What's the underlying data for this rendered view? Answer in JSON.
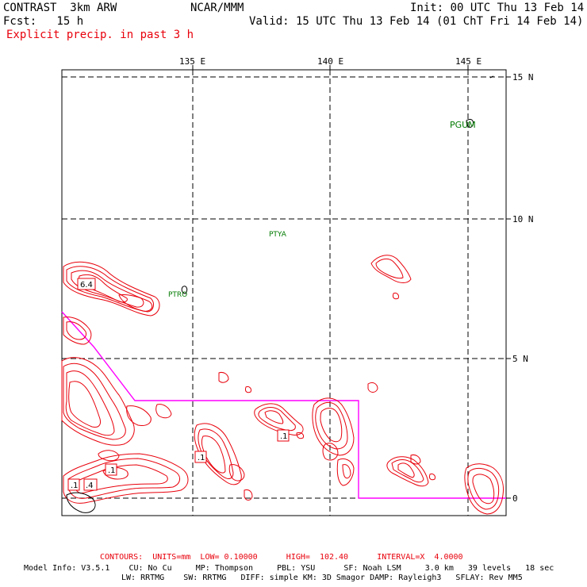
{
  "header": {
    "model": "CONTRAST  3km ARW",
    "org": "NCAR/MMM",
    "init": "Init: 00 UTC Thu 13 Feb 14",
    "fcst": "Fcst:   15 h",
    "valid": "Valid: 15 UTC Thu 13 Feb 14 (01 ChT Fri 14 Feb 14)",
    "field": "Explicit precip. in past 3 h"
  },
  "map": {
    "lon_labels": [
      "135 E",
      "140 E",
      "145 E"
    ],
    "lat_labels": [
      "15 N",
      "10 N",
      "5 N",
      "0"
    ],
    "stations": [
      "PGUM",
      "PTYA",
      "PTRO"
    ],
    "contour_labels": [
      "6.4",
      ".1",
      ".1",
      ".1",
      ".1",
      ".4"
    ],
    "colors": {
      "contour": "#e8000b",
      "boundary": "#ff00ff",
      "station": "#007a00",
      "grid": "#000000"
    }
  },
  "footer": {
    "contours": "CONTOURS:  UNITS=mm  LOW= 0.10000      HIGH=  102.40      INTERVAL=X  4.0000",
    "model_info_1": "Model Info: V3.5.1    CU: No Cu     MP: Thompson     PBL: YSU      SF: Noah LSM     3.0 km   39 levels   18 sec",
    "model_info_2": "LW: RRTMG    SW: RRTMG   DIFF: simple KM: 3D Smagor DAMP: Rayleigh3   SFLAY: Rev MM5"
  }
}
